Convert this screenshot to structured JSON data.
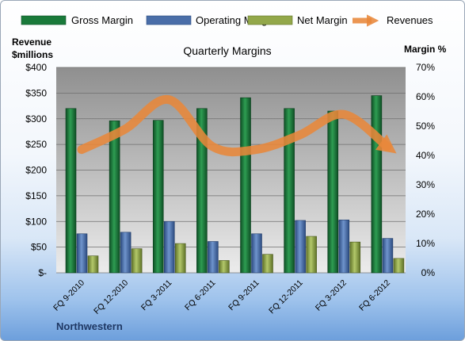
{
  "chart_data": {
    "type": "bar",
    "title": "Quarterly Margins",
    "left_axis_label": [
      "Revenue",
      "$millions"
    ],
    "right_axis_label": "Margin %",
    "footer": "Northwestern",
    "categories": [
      "FQ 9-2010",
      "FQ 12-2010",
      "FQ 3-2011",
      "FQ 6-2011",
      "FQ 9-2011",
      "FQ 12-2011",
      "FQ 3-2012",
      "FQ 6-2012"
    ],
    "left_ticks": [
      "$-",
      "$50",
      "$100",
      "$150",
      "$200",
      "$250",
      "$300",
      "$350",
      "$400"
    ],
    "right_ticks": [
      "0%",
      "10%",
      "20%",
      "30%",
      "40%",
      "50%",
      "60%",
      "70%"
    ],
    "ylim_left": [
      0,
      400
    ],
    "ylim_right": [
      0,
      70
    ],
    "grid": true,
    "legend_position": "top",
    "series": [
      {
        "name": "Gross Margin",
        "kind": "bar",
        "axis": "left",
        "color": "#1a7a3a",
        "values": [
          320,
          296,
          297,
          320,
          341,
          320,
          315,
          345
        ]
      },
      {
        "name": "Operating Margin",
        "kind": "bar",
        "axis": "left",
        "color": "#4a6ea8",
        "values": [
          76,
          79,
          100,
          61,
          76,
          102,
          103,
          67
        ]
      },
      {
        "name": "Net Margin",
        "kind": "bar",
        "axis": "left",
        "color": "#93a84a",
        "values": [
          33,
          47,
          57,
          24,
          36,
          71,
          60,
          28
        ]
      },
      {
        "name": "Revenues",
        "kind": "line",
        "axis": "right",
        "color": "#e8883a",
        "values": [
          42,
          49,
          59,
          43,
          42,
          47,
          54,
          43
        ]
      }
    ]
  }
}
